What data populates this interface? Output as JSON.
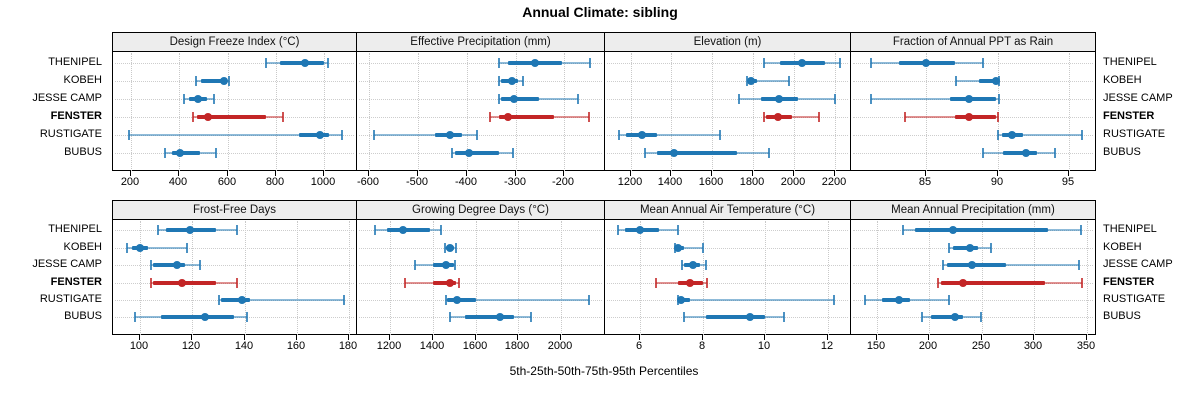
{
  "title": "Annual Climate: sibling",
  "caption": "5th-25th-50th-75th-95th Percentiles",
  "sites": [
    "THENIPEL",
    "KOBEH",
    "JESSE CAMP",
    "FENSTER",
    "RUSTIGATE",
    "BUBUS"
  ],
  "highlight_site": "FENSTER",
  "colors": {
    "series": "#1f77b4",
    "highlight": "#c32526",
    "strip_bg": "#ededed",
    "grid": "#c9c9c9",
    "border": "#000000"
  },
  "chart_data": {
    "type": "dotplot-percentiles",
    "percentiles": [
      5,
      25,
      50,
      75,
      95
    ],
    "legend_note": "each row: 5th-95th whisker with end caps, 25th-75th thick bar, dot at median; FENSTER highlighted red",
    "panels": [
      {
        "title": "Design Freeze Index (°C)",
        "ticks": [
          200,
          400,
          600,
          800,
          1000
        ],
        "xlim": [
          130,
          1135
        ],
        "series": [
          {
            "site": "THENIPEL",
            "values": [
              760,
              815,
              920,
              1000,
              1015
            ]
          },
          {
            "site": "KOBEH",
            "values": [
              470,
              490,
              585,
              598,
              605
            ]
          },
          {
            "site": "JESSE CAMP",
            "values": [
              420,
              440,
              477,
              515,
              545
            ]
          },
          {
            "site": "FENSTER",
            "values": [
              455,
              475,
              520,
              760,
              830
            ]
          },
          {
            "site": "RUSTIGATE",
            "values": [
              190,
              895,
              980,
              1020,
              1075
            ]
          },
          {
            "site": "BUBUS",
            "values": [
              340,
              370,
              405,
              485,
              550
            ]
          }
        ]
      },
      {
        "title": "Effective Precipitation (mm)",
        "ticks": [
          -600,
          -500,
          -400,
          -300,
          -200
        ],
        "xlim": [
          -623,
          -117
        ],
        "series": [
          {
            "site": "THENIPEL",
            "values": [
              -335,
              -315,
              -260,
              -205,
              -148
            ]
          },
          {
            "site": "KOBEH",
            "values": [
              -335,
              -330,
              -307,
              -295,
              -285
            ]
          },
          {
            "site": "JESSE CAMP",
            "values": [
              -335,
              -330,
              -303,
              -253,
              -172
            ]
          },
          {
            "site": "FENSTER",
            "values": [
              -352,
              -335,
              -315,
              -222,
              -150
            ]
          },
          {
            "site": "RUSTIGATE",
            "values": [
              -590,
              -465,
              -434,
              -410,
              -380
            ]
          },
          {
            "site": "BUBUS",
            "values": [
              -430,
              -424,
              -395,
              -335,
              -305
            ]
          }
        ]
      },
      {
        "title": "Elevation (m)",
        "ticks": [
          1200,
          1400,
          1600,
          1800,
          2000,
          2200
        ],
        "xlim": [
          1080,
          2280
        ],
        "series": [
          {
            "site": "THENIPEL",
            "values": [
              1855,
              1930,
              2040,
              2155,
              2225
            ]
          },
          {
            "site": "KOBEH",
            "values": [
              1770,
              1778,
              1790,
              1820,
              1975
            ]
          },
          {
            "site": "JESSE CAMP",
            "values": [
              1730,
              1840,
              1925,
              2020,
              2200
            ]
          },
          {
            "site": "FENSTER",
            "values": [
              1855,
              1865,
              1920,
              1990,
              2125
            ]
          },
          {
            "site": "RUSTIGATE",
            "values": [
              1145,
              1180,
              1255,
              1330,
              1640
            ]
          },
          {
            "site": "BUBUS",
            "values": [
              1270,
              1330,
              1415,
              1720,
              1880
            ]
          }
        ]
      },
      {
        "title": "Fraction of Annual PPT as Rain",
        "ticks": [
          85,
          90,
          95
        ],
        "xlim": [
          79.8,
          96.9
        ],
        "series": [
          {
            "site": "THENIPEL",
            "values": [
              81.1,
              83.1,
              85.0,
              87.0,
              89.0
            ]
          },
          {
            "site": "KOBEH",
            "values": [
              87.1,
              88.7,
              89.9,
              90.0,
              90.1
            ]
          },
          {
            "site": "JESSE CAMP",
            "values": [
              81.1,
              86.7,
              88.0,
              89.9,
              90.1
            ]
          },
          {
            "site": "FENSTER",
            "values": [
              83.5,
              87.0,
              88.0,
              89.9,
              90.0
            ]
          },
          {
            "site": "RUSTIGATE",
            "values": [
              90.0,
              90.3,
              91.0,
              91.8,
              95.9
            ]
          },
          {
            "site": "BUBUS",
            "values": [
              89.0,
              90.4,
              92.0,
              92.8,
              94.0
            ]
          }
        ]
      },
      {
        "title": "Frost-Free Days",
        "ticks": [
          100,
          120,
          140,
          160,
          180
        ],
        "xlim": [
          90,
          183
        ],
        "series": [
          {
            "site": "THENIPEL",
            "values": [
              107,
              110,
              119,
              129,
              137
            ]
          },
          {
            "site": "KOBEH",
            "values": [
              95,
              97,
              100,
              103,
              118
            ]
          },
          {
            "site": "JESSE CAMP",
            "values": [
              104,
              105,
              114,
              117,
              123
            ]
          },
          {
            "site": "FENSTER",
            "values": [
              104,
              105,
              116,
              129,
              137
            ]
          },
          {
            "site": "RUSTIGATE",
            "values": [
              130,
              131,
              139,
              142,
              178
            ]
          },
          {
            "site": "BUBUS",
            "values": [
              98,
              108,
              125,
              136,
              141
            ]
          }
        ]
      },
      {
        "title": "Growing Degree Days (°C)",
        "ticks": [
          1200,
          1400,
          1600,
          1800,
          2000
        ],
        "xlim": [
          1050,
          2205
        ],
        "series": [
          {
            "site": "THENIPEL",
            "values": [
              1130,
              1185,
              1260,
              1385,
              1440
            ]
          },
          {
            "site": "KOBEH",
            "values": [
              1455,
              1460,
              1480,
              1500,
              1510
            ]
          },
          {
            "site": "JESSE CAMP",
            "values": [
              1315,
              1400,
              1460,
              1500,
              1505
            ]
          },
          {
            "site": "FENSTER",
            "values": [
              1270,
              1400,
              1480,
              1510,
              1520
            ]
          },
          {
            "site": "RUSTIGATE",
            "values": [
              1460,
              1465,
              1515,
              1600,
              2130
            ]
          },
          {
            "site": "BUBUS",
            "values": [
              1480,
              1550,
              1715,
              1780,
              1860
            ]
          }
        ]
      },
      {
        "title": "Mean Annual Air Temperature (°C)",
        "ticks": [
          6,
          8,
          10,
          12
        ],
        "xlim": [
          4.9,
          12.75
        ],
        "series": [
          {
            "site": "THENIPEL",
            "values": [
              5.3,
              5.5,
              6.0,
              6.6,
              7.2
            ]
          },
          {
            "site": "KOBEH",
            "values": [
              7.1,
              7.15,
              7.2,
              7.4,
              8.0
            ]
          },
          {
            "site": "JESSE CAMP",
            "values": [
              7.35,
              7.4,
              7.7,
              7.9,
              8.1
            ]
          },
          {
            "site": "FENSTER",
            "values": [
              6.5,
              7.2,
              7.6,
              8.0,
              8.15
            ]
          },
          {
            "site": "RUSTIGATE",
            "values": [
              7.2,
              7.25,
              7.3,
              7.6,
              12.2
            ]
          },
          {
            "site": "BUBUS",
            "values": [
              7.4,
              8.1,
              9.5,
              10.0,
              10.6
            ]
          }
        ]
      },
      {
        "title": "Mean Annual Precipitation (mm)",
        "ticks": [
          150,
          200,
          250,
          300,
          350
        ],
        "xlim": [
          126,
          359
        ],
        "series": [
          {
            "site": "THENIPEL",
            "values": [
              175,
              186,
              222,
              313,
              345
            ]
          },
          {
            "site": "KOBEH",
            "values": [
              219,
              222,
              239,
              246,
              259
            ]
          },
          {
            "site": "JESSE CAMP",
            "values": [
              213,
              217,
              241,
              273,
              343
            ]
          },
          {
            "site": "FENSTER",
            "values": [
              208,
              211,
              232,
              310,
              346
            ]
          },
          {
            "site": "RUSTIGATE",
            "values": [
              138,
              155,
              171,
              181,
              219
            ]
          },
          {
            "site": "BUBUS",
            "values": [
              193,
              201,
              224,
              232,
              249
            ]
          }
        ]
      }
    ]
  }
}
